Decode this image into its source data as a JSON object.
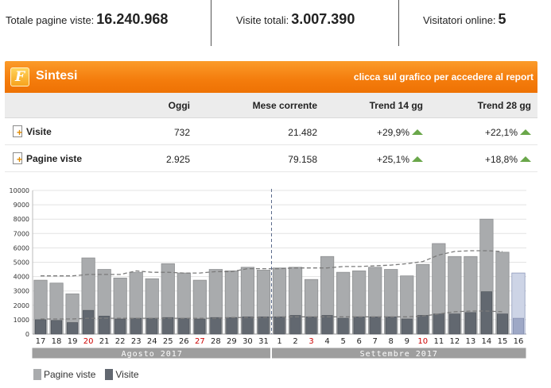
{
  "stats": {
    "page_views_label": "Totale pagine viste:",
    "page_views_value": "16.240.968",
    "visits_label": "Visite totali:",
    "visits_value": "3.007.390",
    "online_label": "Visitatori online:",
    "online_value": "5"
  },
  "panel": {
    "title": "Sintesi",
    "report_link": "clicca sul grafico per accedere al report",
    "logo_letter": "F"
  },
  "summary": {
    "headers": [
      "Oggi",
      "Mese corrente",
      "Trend 14 gg",
      "Trend 28 gg"
    ],
    "rows": [
      {
        "label": "Visite",
        "oggi": "732",
        "mese": "21.482",
        "t14": "+29,9%",
        "t28": "+22,1%"
      },
      {
        "label": "Pagine viste",
        "oggi": "2.925",
        "mese": "79.158",
        "t14": "+25,1%",
        "t28": "+18,8%"
      }
    ]
  },
  "colors": {
    "pages_bar": "#a9abad",
    "visits_bar": "#626870",
    "today_pages": "#cdd4e6",
    "today_visits": "#9ea8c6",
    "trend_up": "#6aa74a",
    "weekend_red": "#cc0000"
  },
  "chart_data": {
    "type": "bar",
    "ylim": [
      0,
      10000
    ],
    "yticks": [
      "0",
      "1000",
      "2000",
      "3000",
      "4000",
      "5000",
      "6000",
      "7000",
      "8000",
      "9000",
      "10000"
    ],
    "categories": [
      "17",
      "18",
      "19",
      "20",
      "21",
      "22",
      "23",
      "24",
      "25",
      "26",
      "27",
      "28",
      "29",
      "30",
      "31",
      "1",
      "2",
      "3",
      "4",
      "5",
      "6",
      "7",
      "8",
      "9",
      "10",
      "11",
      "12",
      "13",
      "14",
      "15",
      "16"
    ],
    "holiday_days": [
      "20",
      "27",
      "3",
      "10"
    ],
    "months": [
      {
        "label": "Agosto 2017",
        "days": 15
      },
      {
        "label": "Settembre 2017",
        "days": 16
      }
    ],
    "series": [
      {
        "name": "Pagine viste",
        "values": [
          3750,
          3550,
          2800,
          5300,
          4500,
          3900,
          4300,
          3850,
          4900,
          4250,
          3750,
          4500,
          4400,
          4650,
          4450,
          4600,
          4650,
          3800,
          5400,
          4300,
          4400,
          4650,
          4500,
          4050,
          4850,
          6300,
          5400,
          5400,
          8000,
          5700,
          4250
        ]
      },
      {
        "name": "Visite",
        "values": [
          1000,
          950,
          800,
          1650,
          1250,
          1050,
          1100,
          1100,
          1150,
          1100,
          1050,
          1150,
          1150,
          1200,
          1200,
          1200,
          1300,
          1200,
          1300,
          1100,
          1200,
          1200,
          1200,
          1050,
          1300,
          1400,
          1400,
          1500,
          2950,
          1400,
          1100
        ]
      }
    ],
    "avg_pages": [
      4050,
      4050,
      4050,
      4150,
      4150,
      4150,
      4400,
      4300,
      4300,
      4250,
      4250,
      4350,
      4350,
      4550,
      4550,
      4550,
      4600,
      4600,
      4600,
      4700,
      4700,
      4750,
      4800,
      4900,
      5050,
      5500,
      5750,
      5800,
      5800,
      5750
    ],
    "avg_visits": [
      1050,
      1050,
      1050,
      1100,
      1100,
      1100,
      1100,
      1100,
      1100,
      1100,
      1100,
      1100,
      1150,
      1150,
      1150,
      1200,
      1200,
      1200,
      1200,
      1200,
      1200,
      1200,
      1200,
      1200,
      1250,
      1400,
      1550,
      1600,
      1600,
      1550
    ],
    "legend": [
      "Pagine viste",
      "Visite"
    ]
  }
}
